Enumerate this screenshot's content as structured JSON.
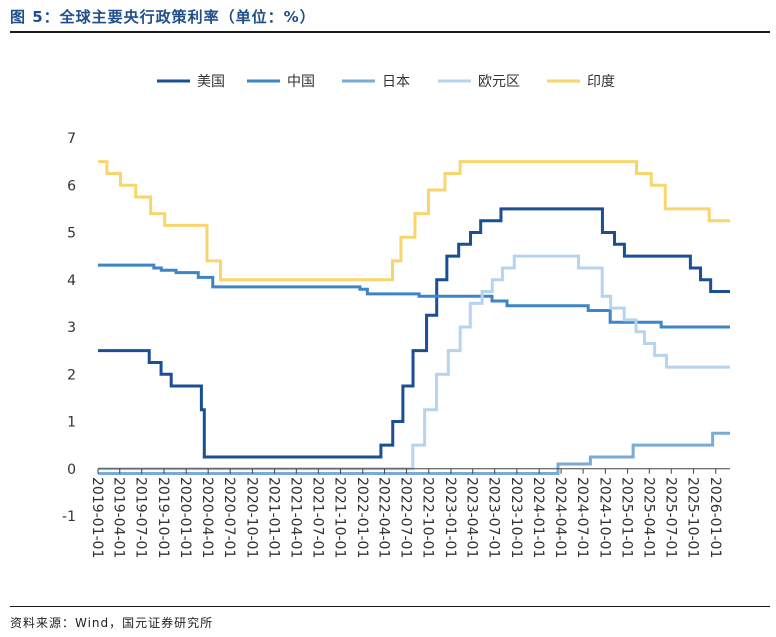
{
  "header": {
    "title": "图 5：全球主要央行政策利率（单位：%）",
    "source": "资料来源：Wind，国元证券研究所"
  },
  "chart_data": {
    "type": "line",
    "step": true,
    "ylim": [
      -1,
      7
    ],
    "yticks": [
      "-1",
      "0",
      "1",
      "2",
      "3",
      "4",
      "5",
      "6",
      "7"
    ],
    "xlim": [
      "2019-01-01",
      "2026-03-01"
    ],
    "xticks": [
      "2019-01-01",
      "2019-04-01",
      "2019-07-01",
      "2019-10-01",
      "2020-01-01",
      "2020-04-01",
      "2020-07-01",
      "2020-10-01",
      "2021-01-01",
      "2021-04-01",
      "2021-07-01",
      "2021-10-01",
      "2022-01-01",
      "2022-04-01",
      "2022-07-01",
      "2022-10-01",
      "2023-01-01",
      "2023-04-01",
      "2023-07-01",
      "2023-10-01",
      "2024-01-01",
      "2024-04-01",
      "2024-07-01",
      "2024-10-01",
      "2025-01-01",
      "2025-04-01",
      "2025-07-01",
      "2025-10-01",
      "2026-01-01"
    ],
    "legend_position": "top",
    "grid": false,
    "series": [
      {
        "name": "美国",
        "color": "#1a4f94",
        "points": [
          [
            "2019-01-01",
            2.5
          ],
          [
            "2019-08-01",
            2.25
          ],
          [
            "2019-09-19",
            2.0
          ],
          [
            "2019-10-31",
            1.75
          ],
          [
            "2020-03-04",
            1.25
          ],
          [
            "2020-03-16",
            0.25
          ],
          [
            "2022-03-17",
            0.5
          ],
          [
            "2022-05-05",
            1.0
          ],
          [
            "2022-06-16",
            1.75
          ],
          [
            "2022-07-28",
            2.5
          ],
          [
            "2022-09-22",
            3.25
          ],
          [
            "2022-11-03",
            4.0
          ],
          [
            "2022-12-15",
            4.5
          ],
          [
            "2023-02-02",
            4.75
          ],
          [
            "2023-03-23",
            5.0
          ],
          [
            "2023-05-04",
            5.25
          ],
          [
            "2023-07-27",
            5.5
          ],
          [
            "2024-09-19",
            5.0
          ],
          [
            "2024-11-08",
            4.75
          ],
          [
            "2024-12-19",
            4.5
          ],
          [
            "2025-09-18",
            4.25
          ],
          [
            "2025-10-30",
            4.0
          ],
          [
            "2025-12-11",
            3.75
          ],
          [
            "2026-03-01",
            3.75
          ]
        ]
      },
      {
        "name": "中国",
        "color": "#3d85c6",
        "points": [
          [
            "2019-01-01",
            4.31
          ],
          [
            "2019-08-20",
            4.25
          ],
          [
            "2019-09-20",
            4.2
          ],
          [
            "2019-10-21",
            4.2
          ],
          [
            "2019-11-20",
            4.15
          ],
          [
            "2020-02-20",
            4.05
          ],
          [
            "2020-04-20",
            3.85
          ],
          [
            "2021-12-20",
            3.8
          ],
          [
            "2022-01-20",
            3.7
          ],
          [
            "2022-08-22",
            3.65
          ],
          [
            "2023-06-20",
            3.55
          ],
          [
            "2023-08-21",
            3.45
          ],
          [
            "2024-07-22",
            3.35
          ],
          [
            "2024-10-21",
            3.1
          ],
          [
            "2025-05-20",
            3.0
          ],
          [
            "2026-03-01",
            3.0
          ]
        ]
      },
      {
        "name": "日本",
        "color": "#7aaad6",
        "points": [
          [
            "2019-01-01",
            -0.1
          ],
          [
            "2024-03-19",
            0.1
          ],
          [
            "2024-07-31",
            0.25
          ],
          [
            "2025-01-24",
            0.5
          ],
          [
            "2025-12-19",
            0.75
          ],
          [
            "2026-03-01",
            0.75
          ]
        ]
      },
      {
        "name": "欧元区",
        "color": "#b7d4ee",
        "points": [
          [
            "2019-01-01",
            0.0
          ],
          [
            "2022-07-27",
            0.5
          ],
          [
            "2022-09-14",
            1.25
          ],
          [
            "2022-11-02",
            2.0
          ],
          [
            "2022-12-21",
            2.5
          ],
          [
            "2023-02-08",
            3.0
          ],
          [
            "2023-03-22",
            3.5
          ],
          [
            "2023-05-10",
            3.75
          ],
          [
            "2023-06-21",
            4.0
          ],
          [
            "2023-08-02",
            4.25
          ],
          [
            "2023-09-20",
            4.5
          ],
          [
            "2024-06-12",
            4.25
          ],
          [
            "2024-09-18",
            3.65
          ],
          [
            "2024-10-23",
            3.4
          ],
          [
            "2024-12-18",
            3.15
          ],
          [
            "2025-02-05",
            2.9
          ],
          [
            "2025-03-12",
            2.65
          ],
          [
            "2025-04-23",
            2.4
          ],
          [
            "2025-06-11",
            2.15
          ],
          [
            "2026-03-01",
            2.15
          ]
        ]
      },
      {
        "name": "印度",
        "color": "#f8d66d",
        "points": [
          [
            "2019-01-01",
            6.5
          ],
          [
            "2019-02-07",
            6.25
          ],
          [
            "2019-04-04",
            6.0
          ],
          [
            "2019-06-06",
            5.75
          ],
          [
            "2019-08-07",
            5.4
          ],
          [
            "2019-10-04",
            5.15
          ],
          [
            "2020-03-27",
            4.4
          ],
          [
            "2020-05-22",
            4.0
          ],
          [
            "2022-05-04",
            4.4
          ],
          [
            "2022-06-08",
            4.9
          ],
          [
            "2022-08-05",
            5.4
          ],
          [
            "2022-09-30",
            5.9
          ],
          [
            "2022-12-07",
            6.25
          ],
          [
            "2023-02-08",
            6.5
          ],
          [
            "2025-02-07",
            6.25
          ],
          [
            "2025-04-09",
            6.0
          ],
          [
            "2025-06-06",
            5.5
          ],
          [
            "2025-12-05",
            5.25
          ],
          [
            "2026-03-01",
            5.25
          ]
        ]
      }
    ]
  }
}
